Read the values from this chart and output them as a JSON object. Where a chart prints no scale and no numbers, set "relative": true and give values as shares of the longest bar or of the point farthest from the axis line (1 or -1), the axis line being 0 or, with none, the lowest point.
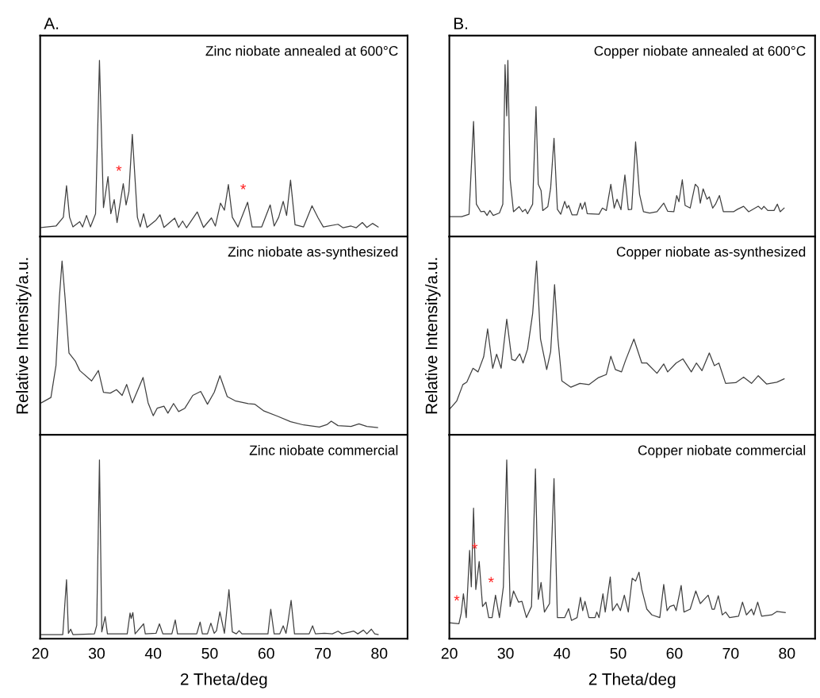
{
  "chart_data": [
    {
      "type": "line",
      "title": "Zinc niobate annealed at 600°C",
      "annotations": [
        "A.",
        {
          "text": "*",
          "x": 34.7,
          "y": 0.3
        },
        {
          "text": "*",
          "x": 56.7,
          "y": 0.195
        }
      ],
      "relative": true,
      "xlim": [
        20,
        85
      ],
      "xticks": [
        20,
        30,
        40,
        50,
        60,
        70,
        80
      ],
      "tick_labels": false,
      "grid": false,
      "legend": false,
      "series": [
        {
          "color": "#404040",
          "x": [
            20.2,
            22.8,
            24.1,
            24.66,
            25.2,
            25.8,
            27.0,
            27.5,
            28.2,
            28.9,
            29.8,
            30.49,
            31.2,
            32.0,
            32.5,
            33.1,
            33.6,
            34.7,
            35.2,
            35.7,
            36.3,
            37.2,
            37.7,
            38.3,
            38.9,
            40.5,
            41.2,
            41.9,
            43.8,
            44.5,
            45.2,
            45.9,
            47.8,
            48.9,
            50.3,
            51.0,
            51.9,
            52.6,
            53.3,
            54.0,
            55.0,
            56.7,
            57.5,
            59.2,
            60.7,
            61.4,
            62.2,
            63.0,
            63.6,
            64.3,
            65.1,
            66.6,
            68.1,
            69.2,
            70.1,
            72.7,
            73.6,
            75.0,
            75.9,
            77.0,
            77.8,
            78.8,
            79.8
          ],
          "values": [
            0.052,
            0.06,
            0.11,
            0.289,
            0.11,
            0.055,
            0.085,
            0.055,
            0.12,
            0.055,
            0.13,
            1.0,
            0.165,
            0.34,
            0.13,
            0.21,
            0.08,
            0.3,
            0.18,
            0.255,
            0.58,
            0.11,
            0.055,
            0.13,
            0.052,
            0.094,
            0.124,
            0.052,
            0.105,
            0.052,
            0.088,
            0.05,
            0.14,
            0.052,
            0.106,
            0.06,
            0.19,
            0.15,
            0.295,
            0.11,
            0.055,
            0.195,
            0.055,
            0.055,
            0.18,
            0.06,
            0.11,
            0.2,
            0.12,
            0.32,
            0.067,
            0.055,
            0.175,
            0.105,
            0.055,
            0.07,
            0.05,
            0.06,
            0.05,
            0.08,
            0.052,
            0.075,
            0.055
          ]
        }
      ]
    },
    {
      "type": "line",
      "title": "Zinc niobate as-synthesized",
      "ylabel": "Relative Intensity/a.u.",
      "relative": true,
      "xlim": [
        20,
        85
      ],
      "xticks": [
        20,
        30,
        40,
        50,
        60,
        70,
        80
      ],
      "tick_labels": false,
      "grid": false,
      "legend": false,
      "series": [
        {
          "color": "#404040",
          "x": [
            20.2,
            21.9,
            22.8,
            23.4,
            23.87,
            24.4,
            25.1,
            26.2,
            27.0,
            29.1,
            30.3,
            31.2,
            32.4,
            33.5,
            34.5,
            35.3,
            36.3,
            38.2,
            39.1,
            40.0,
            40.7,
            41.9,
            42.6,
            43.6,
            44.5,
            45.6,
            47.0,
            48.4,
            49.6,
            50.8,
            51.8,
            53.1,
            54.5,
            56.8,
            58.0,
            59.6,
            62.0,
            64.3,
            66.6,
            69.4,
            70.8,
            71.5,
            72.7,
            75.0,
            76.4,
            77.8,
            79.7
          ],
          "values": [
            0.184,
            0.215,
            0.4,
            0.79,
            1.0,
            0.79,
            0.47,
            0.425,
            0.37,
            0.31,
            0.37,
            0.245,
            0.24,
            0.26,
            0.227,
            0.29,
            0.184,
            0.33,
            0.184,
            0.11,
            0.153,
            0.165,
            0.125,
            0.18,
            0.134,
            0.153,
            0.227,
            0.25,
            0.176,
            0.245,
            0.34,
            0.22,
            0.196,
            0.18,
            0.176,
            0.137,
            0.107,
            0.076,
            0.057,
            0.045,
            0.06,
            0.079,
            0.053,
            0.048,
            0.063,
            0.048,
            0.042
          ]
        }
      ]
    },
    {
      "type": "line",
      "title": "Zinc niobate commercial",
      "xlabel": "2 Theta/deg",
      "relative": true,
      "xlim": [
        20,
        85
      ],
      "xticks": [
        20,
        30,
        40,
        50,
        60,
        70,
        80
      ],
      "tick_labels": "x",
      "grid": false,
      "legend": false,
      "series": [
        {
          "color": "#404040",
          "x": [
            20.2,
            24.0,
            24.66,
            25.0,
            25.4,
            25.8,
            29.6,
            30.0,
            30.49,
            30.9,
            31.5,
            31.9,
            35.4,
            35.9,
            36.1,
            36.4,
            36.8,
            38.3,
            38.6,
            40.5,
            41.1,
            41.7,
            43.3,
            43.9,
            44.3,
            47.7,
            48.3,
            48.7,
            49.6,
            50.2,
            50.8,
            51.2,
            51.8,
            52.6,
            53.4,
            54.0,
            54.7,
            55.2,
            55.7,
            60.3,
            60.8,
            61.4,
            62.4,
            63.0,
            63.5,
            63.9,
            64.4,
            65.0,
            67.6,
            68.2,
            68.7,
            70.3,
            71.7,
            72.7,
            73.4,
            75.5,
            76.2,
            77.2,
            77.8,
            78.6,
            79.2,
            79.8
          ],
          "values": [
            0.023,
            0.023,
            0.33,
            0.03,
            0.053,
            0.023,
            0.027,
            0.075,
            1.0,
            0.038,
            0.123,
            0.027,
            0.027,
            0.143,
            0.113,
            0.146,
            0.027,
            0.083,
            0.027,
            0.03,
            0.083,
            0.027,
            0.027,
            0.105,
            0.027,
            0.027,
            0.093,
            0.027,
            0.027,
            0.087,
            0.03,
            0.045,
            0.15,
            0.03,
            0.274,
            0.038,
            0.027,
            0.045,
            0.027,
            0.027,
            0.165,
            0.027,
            0.027,
            0.072,
            0.03,
            0.105,
            0.214,
            0.027,
            0.027,
            0.072,
            0.027,
            0.03,
            0.027,
            0.042,
            0.027,
            0.042,
            0.027,
            0.048,
            0.027,
            0.053,
            0.027,
            0.023
          ]
        }
      ]
    },
    {
      "type": "line",
      "title": "Copper niobate annealed at 600°C",
      "annotations": [
        "B."
      ],
      "relative": true,
      "xlim": [
        20,
        85
      ],
      "xticks": [
        20,
        30,
        40,
        50,
        60,
        70,
        80
      ],
      "tick_labels": false,
      "grid": false,
      "legend": false,
      "series": [
        {
          "color": "#404040",
          "x": [
            20.1,
            22.2,
            23.5,
            24.3,
            24.8,
            25.6,
            26.2,
            26.7,
            27.2,
            27.8,
            28.9,
            29.5,
            29.9,
            30.2,
            30.4,
            30.8,
            31.4,
            32.4,
            33.0,
            33.5,
            33.9,
            34.8,
            35.4,
            35.8,
            36.3,
            36.6,
            37.5,
            38.0,
            38.6,
            39.2,
            39.8,
            40.5,
            40.9,
            41.2,
            41.8,
            42.7,
            43.3,
            43.6,
            44.1,
            44.5,
            46.6,
            47.2,
            47.9,
            48.7,
            49.3,
            49.8,
            50.5,
            51.2,
            51.8,
            52.4,
            53.1,
            53.8,
            54.5,
            55.6,
            56.9,
            58.1,
            58.8,
            59.9,
            60.4,
            60.8,
            61.4,
            61.9,
            62.8,
            63.7,
            64.2,
            64.6,
            65.1,
            65.8,
            66.2,
            66.8,
            67.3,
            68.0,
            68.7,
            70.5,
            71.2,
            72.3,
            73.2,
            74.9,
            75.5,
            75.9,
            76.6,
            77.7,
            78.3,
            78.8,
            79.5
          ],
          "values": [
            0.113,
            0.113,
            0.127,
            0.653,
            0.184,
            0.141,
            0.144,
            0.12,
            0.148,
            0.12,
            0.134,
            0.184,
            0.975,
            0.685,
            1.0,
            0.325,
            0.141,
            0.17,
            0.141,
            0.155,
            0.13,
            0.184,
            0.737,
            0.297,
            0.261,
            0.148,
            0.17,
            0.275,
            0.558,
            0.155,
            0.127,
            0.2,
            0.162,
            0.177,
            0.124,
            0.124,
            0.19,
            0.155,
            0.195,
            0.13,
            0.127,
            0.162,
            0.148,
            0.297,
            0.162,
            0.212,
            0.153,
            0.35,
            0.153,
            0.155,
            0.537,
            0.24,
            0.141,
            0.134,
            0.141,
            0.19,
            0.144,
            0.141,
            0.233,
            0.198,
            0.322,
            0.177,
            0.162,
            0.297,
            0.28,
            0.19,
            0.271,
            0.212,
            0.226,
            0.162,
            0.184,
            0.233,
            0.141,
            0.141,
            0.155,
            0.172,
            0.141,
            0.172,
            0.155,
            0.172,
            0.148,
            0.148,
            0.184,
            0.141,
            0.162
          ]
        }
      ]
    },
    {
      "type": "line",
      "title": "Copper niobate as-synthesized",
      "ylabel": "Relative Intensity/a.u.",
      "relative": true,
      "xlim": [
        20,
        85
      ],
      "xticks": [
        20,
        30,
        40,
        50,
        60,
        70,
        80
      ],
      "tick_labels": false,
      "grid": false,
      "legend": false,
      "series": [
        {
          "color": "#404040",
          "x": [
            20.0,
            21.3,
            22.4,
            23.1,
            24.2,
            25.1,
            26.1,
            26.8,
            27.7,
            28.4,
            29.2,
            30.2,
            31.1,
            31.7,
            32.5,
            33.1,
            33.9,
            34.8,
            35.5,
            36.2,
            37.3,
            38.0,
            38.7,
            39.3,
            40.0,
            41.6,
            43.2,
            44.8,
            46.5,
            47.9,
            48.7,
            49.5,
            50.6,
            51.3,
            52.8,
            54.2,
            55.1,
            56.9,
            58.1,
            58.8,
            60.3,
            61.5,
            63.0,
            63.9,
            64.9,
            66.2,
            67.1,
            67.9,
            69.1,
            70.9,
            72.3,
            73.7,
            74.9,
            76.4,
            78.2,
            79.5
          ],
          "values": [
            0.146,
            0.194,
            0.289,
            0.303,
            0.383,
            0.362,
            0.449,
            0.609,
            0.383,
            0.464,
            0.383,
            0.665,
            0.434,
            0.427,
            0.466,
            0.413,
            0.493,
            0.697,
            1.0,
            0.551,
            0.376,
            0.478,
            0.864,
            0.551,
            0.31,
            0.274,
            0.296,
            0.289,
            0.329,
            0.347,
            0.452,
            0.376,
            0.362,
            0.427,
            0.551,
            0.413,
            0.413,
            0.354,
            0.408,
            0.362,
            0.413,
            0.437,
            0.362,
            0.413,
            0.369,
            0.471,
            0.398,
            0.413,
            0.296,
            0.3,
            0.332,
            0.296,
            0.34,
            0.292,
            0.303,
            0.322
          ]
        }
      ]
    },
    {
      "type": "line",
      "title": "Copper niobate commercial",
      "xlabel": "2 Theta/deg",
      "annotations": [
        {
          "text": "*",
          "x": 22.1,
          "y": 0.141
        },
        {
          "text": "*",
          "x": 25.3,
          "y": 0.432
        },
        {
          "text": "*",
          "x": 28.2,
          "y": 0.243
        }
      ],
      "relative": true,
      "xlim": [
        20,
        85
      ],
      "xticks": [
        20,
        30,
        40,
        50,
        60,
        70,
        80
      ],
      "tick_labels": "x",
      "grid": false,
      "legend": false,
      "series": [
        {
          "color": "#404040",
          "x": [
            20.0,
            21.7,
            22.1,
            22.5,
            23.0,
            23.6,
            23.9,
            24.3,
            24.7,
            25.3,
            25.9,
            26.5,
            27.0,
            27.6,
            28.2,
            28.9,
            29.6,
            30.2,
            30.8,
            31.4,
            32.3,
            32.9,
            33.7,
            34.6,
            35.3,
            35.8,
            36.3,
            36.9,
            37.8,
            38.6,
            39.2,
            40.5,
            41.2,
            41.7,
            42.7,
            43.3,
            43.7,
            44.1,
            44.8,
            45.9,
            46.2,
            46.6,
            47.3,
            47.7,
            48.6,
            49.0,
            49.8,
            50.4,
            51.1,
            51.8,
            52.5,
            53.1,
            53.7,
            54.2,
            55.1,
            56.0,
            57.4,
            58.1,
            58.7,
            59.2,
            59.9,
            60.3,
            61.2,
            61.7,
            62.8,
            63.8,
            64.6,
            65.3,
            66.0,
            66.7,
            67.1,
            67.8,
            68.5,
            69.1,
            69.8,
            71.4,
            72.1,
            72.8,
            73.7,
            74.1,
            74.8,
            75.5,
            77.3,
            78.2,
            79.7
          ],
          "values": [
            0.089,
            0.083,
            0.141,
            0.251,
            0.118,
            0.494,
            0.29,
            0.73,
            0.275,
            0.432,
            0.18,
            0.204,
            0.118,
            0.118,
            0.243,
            0.118,
            0.29,
            1.0,
            0.18,
            0.267,
            0.204,
            0.209,
            0.118,
            0.18,
            0.95,
            0.22,
            0.314,
            0.149,
            0.196,
            0.895,
            0.118,
            0.118,
            0.168,
            0.102,
            0.118,
            0.231,
            0.157,
            0.209,
            0.118,
            0.118,
            0.149,
            0.118,
            0.251,
            0.149,
            0.345,
            0.157,
            0.196,
            0.157,
            0.243,
            0.149,
            0.338,
            0.322,
            0.372,
            0.275,
            0.165,
            0.133,
            0.118,
            0.303,
            0.157,
            0.18,
            0.188,
            0.157,
            0.298,
            0.149,
            0.165,
            0.267,
            0.196,
            0.22,
            0.243,
            0.165,
            0.165,
            0.24,
            0.133,
            0.149,
            0.118,
            0.126,
            0.204,
            0.133,
            0.165,
            0.133,
            0.204,
            0.126,
            0.133,
            0.152,
            0.146
          ]
        }
      ]
    }
  ]
}
